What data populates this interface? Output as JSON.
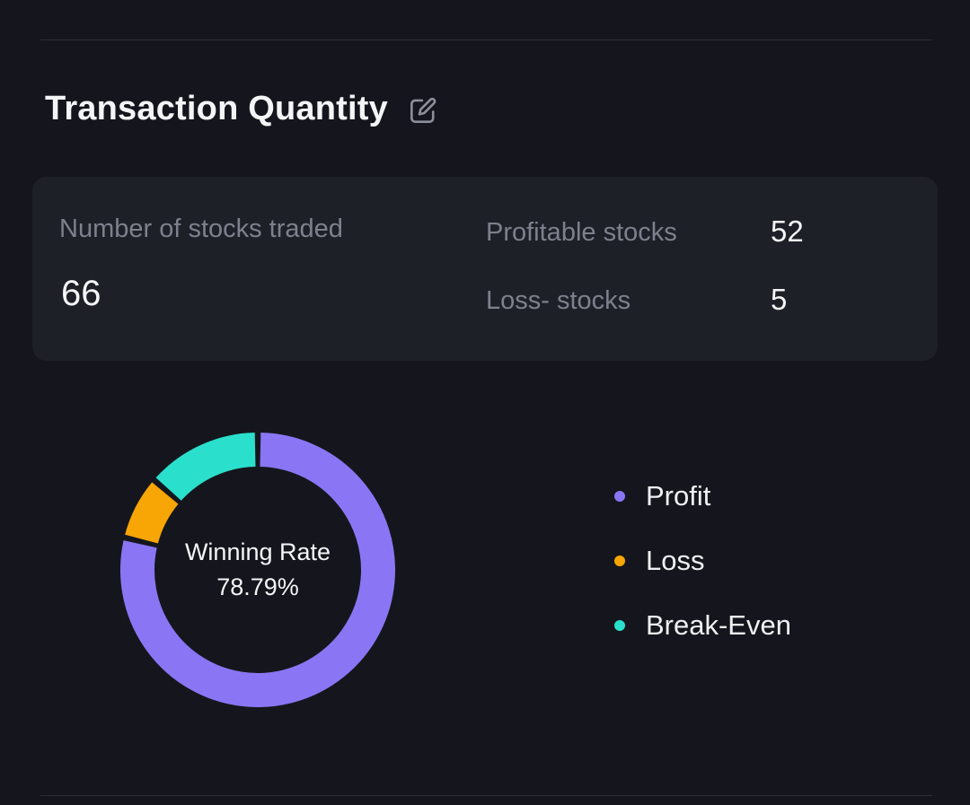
{
  "header": {
    "title": "Transaction Quantity"
  },
  "stats_card": {
    "primary_label": "Number of stocks traded",
    "primary_value": "66",
    "rows": [
      {
        "label": "Profitable stocks",
        "value": "52"
      },
      {
        "label": "Loss- stocks",
        "value": "5"
      }
    ]
  },
  "chart_data": {
    "type": "pie",
    "donut": true,
    "title": "Transaction Quantity winning rate",
    "center_label": "Winning Rate",
    "center_value": "78.79%",
    "total": 66,
    "series": [
      {
        "name": "Profit",
        "value": 52,
        "percent": 78.79,
        "color": "#8a76f4"
      },
      {
        "name": "Loss",
        "value": 5,
        "percent": 7.58,
        "color": "#f7a606"
      },
      {
        "name": "Break-Even",
        "value": 9,
        "percent": 13.64,
        "color": "#2ae0cc"
      }
    ],
    "legend_position": "right",
    "start_angle_deg": 0,
    "direction": "clockwise"
  }
}
